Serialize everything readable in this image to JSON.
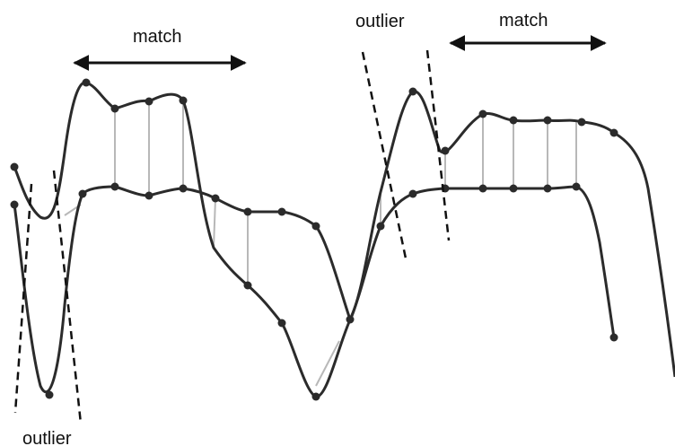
{
  "labels": {
    "match_left": "match",
    "match_right": "match",
    "outlier_top": "outlier",
    "outlier_bottom": "outlier"
  },
  "colors": {
    "curve": "#2b2b2b",
    "dash": "#111111",
    "link": "#b8b8b8",
    "arrow": "#111111"
  }
}
